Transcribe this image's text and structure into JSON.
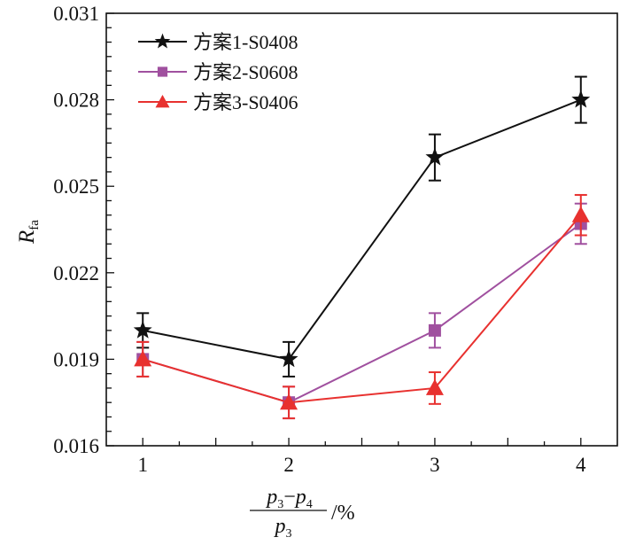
{
  "chart_data": {
    "type": "line",
    "title": "",
    "xlabel": {
      "numerator_a": "p",
      "numerator_a_sub": "3",
      "minus": "−",
      "numerator_b": "p",
      "numerator_b_sub": "4",
      "denominator": "p",
      "denominator_sub": "3",
      "unit": "/%"
    },
    "ylabel": {
      "main": "R",
      "sub": "fa"
    },
    "x": [
      1,
      2,
      3,
      4
    ],
    "xlim": [
      0.75,
      4.25
    ],
    "ylim": [
      0.016,
      0.031
    ],
    "x_ticks": [
      1,
      2,
      3,
      4
    ],
    "x_tick_labels": [
      "1",
      "2",
      "3",
      "4"
    ],
    "y_ticks": [
      0.016,
      0.019,
      0.022,
      0.025,
      0.028,
      0.031
    ],
    "y_tick_labels": [
      "0.016",
      "0.019",
      "0.022",
      "0.025",
      "0.028",
      "0.031"
    ],
    "grid": false,
    "legend_position": "top-left",
    "series": [
      {
        "name": "方案1-S0408",
        "color": "#111111",
        "marker": "star",
        "values": [
          0.02,
          0.019,
          0.026,
          0.028
        ],
        "errors": [
          0.0006,
          0.0006,
          0.0008,
          0.0008
        ]
      },
      {
        "name": "方案2-S0608",
        "color": "#a0509f",
        "marker": "square",
        "values": [
          0.019,
          0.0175,
          0.02,
          0.0237
        ],
        "errors": [
          0.0006,
          0.00055,
          0.0006,
          0.0007
        ]
      },
      {
        "name": "方案3-S0406",
        "color": "#e8312f",
        "marker": "triangle",
        "values": [
          0.019,
          0.0175,
          0.018,
          0.024
        ],
        "errors": [
          0.0006,
          0.00055,
          0.00055,
          0.0007
        ]
      }
    ]
  }
}
